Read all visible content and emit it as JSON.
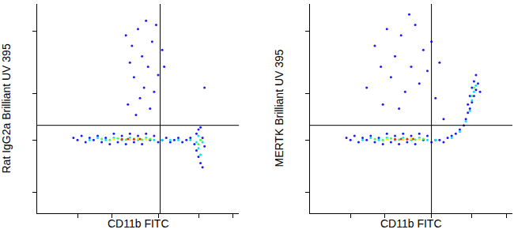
{
  "chart_data": [
    {
      "type": "scatter",
      "xlabel": "CD11b FITC",
      "ylabel": "Rat IgG2a Brilliant UV 395",
      "xlim": [
        0,
        100
      ],
      "ylim": [
        0,
        100
      ],
      "xticks": [
        20,
        37,
        60,
        80,
        97
      ],
      "yticks": [
        10,
        35,
        57,
        87
      ],
      "tick_labels": false,
      "gate": {
        "x": 61,
        "y": 42
      },
      "series": [
        {
          "color": "#1a1aff",
          "x": [
            18,
            20,
            22,
            24,
            26,
            28,
            30,
            32,
            34,
            36,
            38,
            40,
            42,
            44,
            46,
            48,
            50,
            52,
            54,
            56,
            58,
            60,
            62,
            64,
            66,
            68,
            70,
            72,
            74,
            76,
            78,
            79,
            80,
            81,
            82,
            80,
            81,
            79,
            82,
            83,
            44,
            47,
            50,
            52,
            55,
            48,
            53,
            57,
            59,
            46,
            51,
            56,
            49,
            60,
            54,
            62,
            58,
            45,
            63,
            83
          ],
          "y": [
            36,
            35,
            37,
            34,
            36,
            35,
            37,
            34,
            36,
            33,
            38,
            34,
            37,
            33,
            38,
            34,
            37,
            33,
            38,
            35,
            37,
            34,
            35,
            36,
            34,
            35,
            36,
            34,
            35,
            36,
            33,
            30,
            27,
            24,
            22,
            40,
            41,
            38,
            36,
            32,
            85,
            80,
            88,
            75,
            70,
            65,
            60,
            82,
            90,
            72,
            55,
            50,
            47,
            66,
            92,
            78,
            58,
            52,
            70,
            60
          ]
        },
        {
          "color": "#00e0ff",
          "x": [
            26,
            30,
            34,
            38,
            42,
            46,
            50,
            54,
            58,
            62,
            66,
            70,
            76,
            79,
            80,
            81,
            80,
            82
          ],
          "y": [
            35,
            36,
            35,
            36,
            35,
            36,
            35,
            36,
            35,
            35,
            35,
            35,
            35,
            34,
            31,
            28,
            37,
            34
          ]
        },
        {
          "color": "#40ff40",
          "x": [
            32,
            36,
            40,
            44,
            48,
            52,
            56,
            80,
            81
          ],
          "y": [
            35.5,
            35,
            35.8,
            35.2,
            35.6,
            35.2,
            35.5,
            33,
            35
          ]
        },
        {
          "color": "#ffee00",
          "x": [
            38,
            42,
            46,
            50,
            54
          ],
          "y": [
            35.4,
            35.6,
            35.3,
            35.7,
            35.4
          ]
        },
        {
          "color": "#ff2020",
          "x": [
            42,
            45,
            48,
            51
          ],
          "y": [
            35.4,
            35.5,
            35.4,
            35.5
          ]
        }
      ]
    },
    {
      "type": "scatter",
      "xlabel": "CD11b FITC",
      "ylabel": "MERTK Brilliant UV 395",
      "xlim": [
        0,
        100
      ],
      "ylim": [
        0,
        100
      ],
      "xticks": [
        20,
        37,
        60,
        80,
        97
      ],
      "yticks": [
        10,
        35,
        57,
        87
      ],
      "tick_labels": false,
      "gate": {
        "x": 60,
        "y": 42
      },
      "series": [
        {
          "color": "#1a1aff",
          "x": [
            18,
            20,
            22,
            24,
            26,
            28,
            30,
            32,
            34,
            36,
            38,
            40,
            42,
            44,
            46,
            48,
            50,
            52,
            54,
            56,
            58,
            60,
            62,
            64,
            66,
            68,
            70,
            72,
            74,
            76,
            77,
            78,
            79,
            80,
            81,
            82,
            83,
            82,
            80,
            78,
            84,
            81,
            79,
            28,
            32,
            35,
            38,
            40,
            42,
            45,
            47,
            50,
            52,
            54,
            56,
            58,
            60,
            44,
            36,
            62,
            66,
            64,
            49
          ],
          "y": [
            36,
            35,
            37,
            34,
            36,
            35,
            37,
            34,
            36,
            33,
            38,
            34,
            37,
            33,
            38,
            34,
            37,
            33,
            38,
            35,
            37,
            34,
            35,
            35,
            34,
            36,
            37,
            38,
            40,
            42,
            45,
            48,
            50,
            53,
            56,
            59,
            62,
            66,
            60,
            52,
            58,
            63,
            56,
            60,
            80,
            70,
            88,
            65,
            75,
            85,
            58,
            70,
            90,
            62,
            78,
            68,
            82,
            50,
            52,
            55,
            45,
            72,
            95
          ]
        },
        {
          "color": "#00e0ff",
          "x": [
            26,
            30,
            34,
            38,
            42,
            46,
            50,
            54,
            58,
            62,
            70,
            74,
            77,
            79,
            80,
            81,
            82
          ],
          "y": [
            35,
            36,
            35,
            36,
            35,
            36,
            35,
            36,
            35,
            35,
            36,
            39,
            44,
            49,
            54,
            58,
            61
          ]
        },
        {
          "color": "#40ff40",
          "x": [
            32,
            36,
            40,
            44,
            48,
            52,
            56,
            80,
            81
          ],
          "y": [
            35.5,
            35,
            35.8,
            35.2,
            35.6,
            35.2,
            35.5,
            56,
            60
          ]
        },
        {
          "color": "#ffee00",
          "x": [
            38,
            42,
            46,
            50,
            54
          ],
          "y": [
            35.4,
            35.6,
            35.3,
            35.7,
            35.4
          ]
        },
        {
          "color": "#ff2020",
          "x": [
            42,
            45,
            48,
            51
          ],
          "y": [
            35.4,
            35.5,
            35.4,
            35.5
          ]
        }
      ]
    }
  ]
}
